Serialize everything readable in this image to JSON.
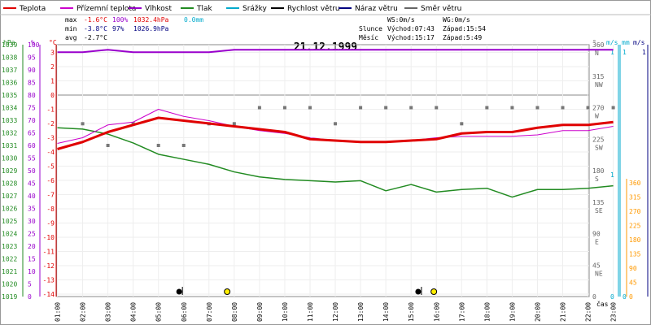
{
  "chart_data": {
    "type": "line",
    "title": "21.12.1999",
    "x_label": "čas",
    "x_ticks": [
      "01:00",
      "02:00",
      "03:00",
      "04:00",
      "05:00",
      "06:00",
      "07:00",
      "08:00",
      "09:00",
      "10:00",
      "11:00",
      "12:00",
      "13:00",
      "14:00",
      "15:00",
      "16:00",
      "17:00",
      "18:00",
      "19:00",
      "20:00",
      "21:00",
      "22:00",
      "23:00"
    ],
    "legend": [
      {
        "name": "Teplota",
        "color": "#e00000"
      },
      {
        "name": "Přízemní teplota",
        "color": "#cc00cc"
      },
      {
        "name": "Vlhkost",
        "color": "#9900cc"
      },
      {
        "name": "Tlak",
        "color": "#228b22"
      },
      {
        "name": "Srážky",
        "color": "#00aacc"
      },
      {
        "name": "Rychlost větru",
        "color": "#000000"
      },
      {
        "name": "Náraz větru",
        "color": "#000080"
      },
      {
        "name": "Směr větru",
        "color": "#666666"
      }
    ],
    "stats": {
      "max": {
        "label": "max",
        "temp": "-1.6°C",
        "hum": "100%",
        "press": "1032.4hPa",
        "rain": "0.0mm"
      },
      "min": {
        "label": "min",
        "temp": "-3.8°C",
        "hum": "97%",
        "press": "1026.9hPa"
      },
      "avg": {
        "label": "avg",
        "temp": "-2.7°C"
      }
    },
    "wind_info": {
      "ws": "WS:0m/s",
      "wg": "WG:0m/s"
    },
    "sun": {
      "label": "Slunce",
      "rise": "Východ:07:43",
      "set": "Západ:15:54"
    },
    "moon": {
      "label": "Měsíc",
      "rise": "Východ:15:17",
      "set": "Západ:5:49"
    },
    "axes": {
      "pressure": {
        "unit": "hPa",
        "ticks": [
          "1039",
          "1038",
          "1037",
          "1036",
          "1035",
          "1034",
          "1033",
          "1032",
          "1031",
          "1030",
          "1029",
          "1028",
          "1027",
          "1026",
          "1025",
          "1024",
          "1023",
          "1022",
          "1021",
          "1020",
          "1019"
        ],
        "range": [
          1019,
          1039
        ]
      },
      "humidity": {
        "unit": "%",
        "ticks": [
          "100",
          "95",
          "90",
          "85",
          "80",
          "75",
          "70",
          "65",
          "60",
          "55",
          "50",
          "45",
          "40",
          "35",
          "30",
          "25",
          "20",
          "15",
          "10",
          "5",
          "0"
        ],
        "range": [
          0,
          100
        ]
      },
      "temperature": {
        "unit": "°C",
        "ticks": [
          "3",
          "2",
          "1",
          "0",
          "-1",
          "-2",
          "-3",
          "-4",
          "-5",
          "-6",
          "-7",
          "-8",
          "-9",
          "-10",
          "-11",
          "-12",
          "-13",
          "-14"
        ],
        "range": [
          -14,
          3.6
        ]
      },
      "direction": {
        "unit": "°",
        "ticks": [
          "360",
          "315",
          "270",
          "225",
          "180",
          "135",
          "90",
          "45",
          "0"
        ],
        "labels": [
          "N",
          "NW",
          "W",
          "SW",
          "S",
          "SE",
          "E",
          "NE",
          ""
        ]
      },
      "wind_speed": {
        "unit": "m/s",
        "ticks": [
          "1",
          "0"
        ]
      },
      "rain": {
        "unit": "mm",
        "ticks": [
          "1",
          "0"
        ]
      },
      "gust_dir": {
        "ticks": [
          "360",
          "315",
          "270",
          "225",
          "180",
          "135",
          "90",
          "45",
          "0"
        ]
      }
    },
    "series": [
      {
        "name": "Teplota",
        "x": [
          1,
          2,
          3,
          4,
          5,
          6,
          7,
          8,
          9,
          10,
          11,
          12,
          13,
          14,
          15,
          16,
          17,
          18,
          19,
          20,
          21,
          22,
          23
        ],
        "values": [
          -3.8,
          -3.3,
          -2.6,
          -2.1,
          -1.6,
          -1.8,
          -2.0,
          -2.2,
          -2.4,
          -2.6,
          -3.1,
          -3.2,
          -3.3,
          -3.3,
          -3.2,
          -3.1,
          -2.7,
          -2.6,
          -2.6,
          -2.3,
          -2.1,
          -2.1,
          -1.9
        ]
      },
      {
        "name": "Přízemní teplota",
        "x": [
          1,
          2,
          3,
          4,
          5,
          6,
          7,
          8,
          9,
          10,
          11,
          12,
          13,
          14,
          15,
          16,
          17,
          18,
          19,
          20,
          21,
          22,
          23
        ],
        "values": [
          -3.4,
          -3.0,
          -2.1,
          -1.9,
          -1.0,
          -1.5,
          -1.8,
          -2.2,
          -2.5,
          -2.7,
          -3.0,
          -3.2,
          -3.3,
          -3.3,
          -3.2,
          -3.0,
          -2.9,
          -2.9,
          -2.9,
          -2.8,
          -2.5,
          -2.5,
          -2.2
        ]
      },
      {
        "name": "Vlhkost",
        "x": [
          1,
          2,
          3,
          4,
          5,
          6,
          7,
          8,
          9,
          10,
          11,
          12,
          13,
          14,
          15,
          16,
          17,
          18,
          19,
          20,
          21,
          22,
          23
        ],
        "values": [
          97,
          97,
          98,
          97,
          97,
          97,
          97,
          98,
          98,
          98,
          98,
          98,
          98,
          98,
          98,
          98,
          98,
          98,
          98,
          98,
          98,
          98,
          98
        ]
      },
      {
        "name": "Tlak",
        "x": [
          1,
          2,
          3,
          4,
          5,
          6,
          7,
          8,
          9,
          10,
          11,
          12,
          13,
          14,
          15,
          16,
          17,
          18,
          19,
          20,
          21,
          22,
          23
        ],
        "values": [
          1032.4,
          1032.3,
          1031.9,
          1031.2,
          1030.3,
          1029.9,
          1029.5,
          1028.9,
          1028.5,
          1028.3,
          1028.2,
          1028.1,
          1028.2,
          1027.4,
          1027.9,
          1027.3,
          1027.5,
          1027.6,
          1026.9,
          1027.5,
          1027.5,
          1027.6,
          1027.8
        ]
      },
      {
        "name": "Směr větru",
        "x": [
          2,
          3,
          4,
          5,
          6,
          7,
          8,
          9,
          10,
          11,
          12,
          13,
          14,
          15,
          16,
          17,
          18,
          19,
          20,
          21,
          22,
          23
        ],
        "values": [
          247,
          216,
          247,
          216,
          216,
          247,
          247,
          270,
          270,
          270,
          247,
          270,
          270,
          270,
          270,
          247,
          270,
          270,
          270,
          270,
          270,
          270
        ]
      }
    ],
    "events": [
      {
        "name": "moon-set",
        "time": 5.82,
        "symbol": "moon"
      },
      {
        "name": "sunrise",
        "time": 7.72,
        "symbol": "sun"
      },
      {
        "name": "moon-rise",
        "time": 15.28,
        "symbol": "moon"
      },
      {
        "name": "sunset",
        "time": 15.9,
        "symbol": "sun"
      }
    ]
  }
}
